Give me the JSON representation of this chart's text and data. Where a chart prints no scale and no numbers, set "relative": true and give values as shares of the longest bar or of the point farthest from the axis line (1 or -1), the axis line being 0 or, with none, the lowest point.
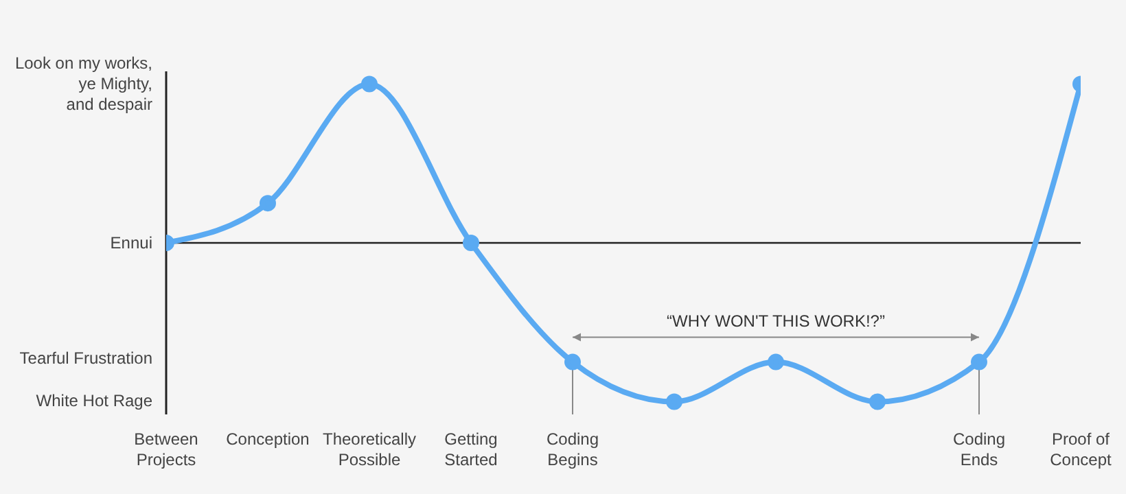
{
  "chart_data": {
    "type": "line",
    "relative": true,
    "categories": [
      "Between Projects",
      "Conception",
      "Theoretically Possible",
      "Getting Started",
      "Coding Begins",
      null,
      null,
      null,
      "Coding Ends",
      "Proof of Concept"
    ],
    "series": [
      {
        "color": "#5aaaf2",
        "values": [
          0,
          0.25,
          1,
          0,
          -0.75,
          -1,
          -0.75,
          -1,
          -0.75,
          1
        ]
      }
    ],
    "annotations": [
      "Look on my works, ye Mighty, and despair",
      "Ennui",
      "Tearful Frustration",
      "White Hot Rage",
      "“WHY WON'T THIS WORK!?”"
    ],
    "ref_lines": [
      {
        "axis": "y",
        "value": 0,
        "color": "#222222"
      },
      {
        "axis": "x",
        "value": "Coding Begins",
        "color": "#888888"
      },
      {
        "axis": "x",
        "value": "Coding Ends",
        "color": "#888888"
      }
    ],
    "marker": "circle",
    "line_style": "solid",
    "grid": false,
    "legend": false
  }
}
